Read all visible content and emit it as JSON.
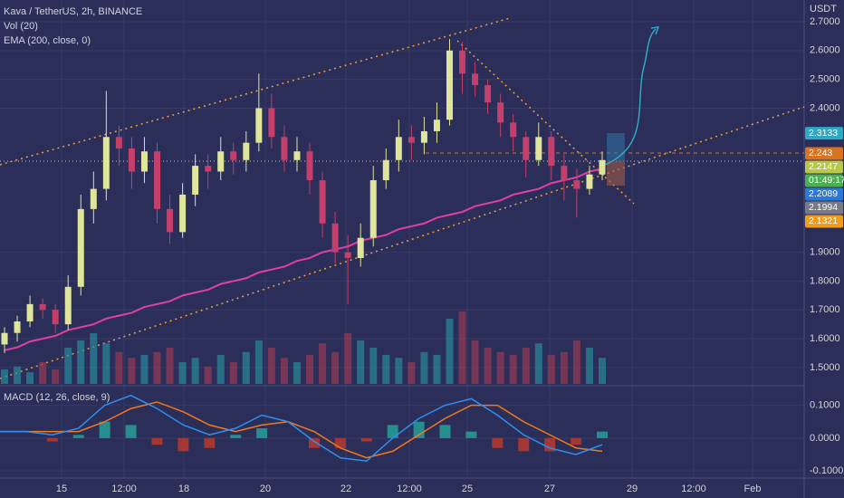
{
  "header": {
    "symbol": "Kava / TetherUS, 2h, BINANCE",
    "volume": "Vol (20)",
    "ema": "EMA (200, close, 0)"
  },
  "price": {
    "currency": "USDT",
    "ylim": [
      1.44,
      2.7754
    ],
    "yticks": [
      {
        "value": 2.7,
        "label": "2.7000"
      },
      {
        "value": 2.6,
        "label": "2.6000"
      },
      {
        "value": 2.5,
        "label": "2.5000"
      },
      {
        "value": 2.4,
        "label": "2.4000"
      },
      {
        "value": 1.9,
        "label": "1.9000"
      },
      {
        "value": 1.8,
        "label": "1.8000"
      },
      {
        "value": 1.7,
        "label": "1.7000"
      },
      {
        "value": 1.6,
        "label": "1.6000"
      },
      {
        "value": 1.5,
        "label": "1.5000"
      }
    ],
    "up_color": "#dfe59a",
    "down_color": "#c43f6c",
    "candles": [
      [
        1.58,
        1.64,
        1.55,
        1.62
      ],
      [
        1.62,
        1.68,
        1.59,
        1.66
      ],
      [
        1.66,
        1.75,
        1.64,
        1.72
      ],
      [
        1.72,
        1.74,
        1.67,
        1.7
      ],
      [
        1.7,
        1.72,
        1.62,
        1.65
      ],
      [
        1.65,
        1.82,
        1.63,
        1.78
      ],
      [
        1.78,
        2.1,
        1.75,
        2.05
      ],
      [
        2.05,
        2.18,
        2.0,
        2.12
      ],
      [
        2.12,
        2.46,
        2.08,
        2.3
      ],
      [
        2.3,
        2.34,
        2.2,
        2.26
      ],
      [
        2.26,
        2.3,
        2.12,
        2.18
      ],
      [
        2.18,
        2.3,
        2.14,
        2.25
      ],
      [
        2.25,
        2.28,
        2.0,
        2.05
      ],
      [
        2.05,
        2.1,
        1.93,
        1.97
      ],
      [
        1.97,
        2.14,
        1.95,
        2.1
      ],
      [
        2.1,
        2.24,
        2.06,
        2.2
      ],
      [
        2.2,
        2.24,
        2.12,
        2.18
      ],
      [
        2.18,
        2.3,
        2.15,
        2.25
      ],
      [
        2.25,
        2.28,
        2.17,
        2.22
      ],
      [
        2.22,
        2.32,
        2.18,
        2.28
      ],
      [
        2.28,
        2.52,
        2.25,
        2.4
      ],
      [
        2.4,
        2.45,
        2.26,
        2.3
      ],
      [
        2.3,
        2.34,
        2.18,
        2.22
      ],
      [
        2.22,
        2.3,
        2.18,
        2.25
      ],
      [
        2.25,
        2.28,
        2.1,
        2.15
      ],
      [
        2.15,
        2.18,
        1.95,
        2.0
      ],
      [
        2.0,
        2.04,
        1.86,
        1.9
      ],
      [
        1.9,
        1.96,
        1.72,
        1.88
      ],
      [
        1.88,
        2.0,
        1.85,
        1.95
      ],
      [
        1.95,
        2.2,
        1.92,
        2.15
      ],
      [
        2.15,
        2.26,
        2.12,
        2.22
      ],
      [
        2.22,
        2.36,
        2.18,
        2.3
      ],
      [
        2.3,
        2.34,
        2.22,
        2.28
      ],
      [
        2.28,
        2.37,
        2.24,
        2.32
      ],
      [
        2.32,
        2.42,
        2.28,
        2.36
      ],
      [
        2.36,
        2.64,
        2.34,
        2.6
      ],
      [
        2.6,
        2.63,
        2.45,
        2.52
      ],
      [
        2.52,
        2.56,
        2.44,
        2.48
      ],
      [
        2.48,
        2.5,
        2.38,
        2.42
      ],
      [
        2.42,
        2.45,
        2.3,
        2.35
      ],
      [
        2.35,
        2.38,
        2.25,
        2.3
      ],
      [
        2.3,
        2.32,
        2.16,
        2.22
      ],
      [
        2.22,
        2.35,
        2.2,
        2.3
      ],
      [
        2.3,
        2.32,
        2.15,
        2.2
      ],
      [
        2.2,
        2.24,
        2.08,
        2.15
      ],
      [
        2.15,
        2.19,
        2.02,
        2.12
      ],
      [
        2.12,
        2.2,
        2.1,
        2.17
      ],
      [
        2.17,
        2.25,
        2.15,
        2.22
      ]
    ],
    "ema_color": "#e040a0",
    "ema": [
      1.56,
      1.57,
      1.59,
      1.6,
      1.61,
      1.63,
      1.64,
      1.65,
      1.67,
      1.68,
      1.69,
      1.71,
      1.72,
      1.73,
      1.75,
      1.76,
      1.77,
      1.79,
      1.8,
      1.81,
      1.83,
      1.84,
      1.85,
      1.87,
      1.88,
      1.9,
      1.91,
      1.92,
      1.94,
      1.95,
      1.96,
      1.98,
      1.99,
      2.0,
      2.02,
      2.03,
      2.04,
      2.06,
      2.07,
      2.08,
      2.1,
      2.11,
      2.12,
      2.14,
      2.15,
      2.16,
      2.18,
      2.19
    ],
    "volume": [
      10,
      12,
      8,
      15,
      10,
      25,
      30,
      35,
      28,
      22,
      18,
      20,
      22,
      25,
      15,
      18,
      12,
      20,
      15,
      22,
      30,
      25,
      18,
      15,
      20,
      28,
      22,
      35,
      30,
      25,
      20,
      18,
      15,
      22,
      20,
      45,
      50,
      30,
      25,
      22,
      20,
      25,
      28,
      20,
      22,
      30,
      25,
      18
    ],
    "badges": [
      {
        "value": 2.3133,
        "color": "#2fa8c4"
      },
      {
        "value": 2.243,
        "color": "#d9731f"
      },
      {
        "value": 2.2147,
        "color": "#b5c84a"
      },
      {
        "value": 2.2089,
        "color": "#2979d8"
      },
      {
        "value": 2.1994,
        "color": "#787b86"
      },
      {
        "value": 2.1321,
        "color": "#f29a1a"
      }
    ],
    "countdown": "01:49:17"
  },
  "macd": {
    "label": "MACD (12, 26, close, 9)",
    "ylim": [
      -0.1189,
      0.1568
    ],
    "yticks": [
      {
        "value": 0.1,
        "label": "0.1000"
      },
      {
        "value": 0,
        "label": "0.0000"
      },
      {
        "value": -0.1,
        "label": "-0.1000"
      }
    ],
    "macd_color": "#2e8ff0",
    "signal_color": "#f27a1a",
    "macd": [
      0.02,
      0.02,
      0.01,
      0.03,
      0.1,
      0.13,
      0.09,
      0.04,
      0.01,
      0.03,
      0.07,
      0.05,
      -0.01,
      -0.06,
      -0.07,
      0.0,
      0.06,
      0.1,
      0.12,
      0.07,
      0.01,
      -0.03,
      -0.05,
      -0.02
    ],
    "signal": [
      0.02,
      0.02,
      0.02,
      0.02,
      0.05,
      0.09,
      0.11,
      0.08,
      0.04,
      0.02,
      0.04,
      0.05,
      0.02,
      -0.03,
      -0.06,
      -0.04,
      0.01,
      0.06,
      0.1,
      0.1,
      0.05,
      0.01,
      -0.03,
      -0.04
    ],
    "histogram": [
      0,
      0,
      -0.01,
      0.01,
      0.05,
      0.04,
      -0.02,
      -0.04,
      -0.03,
      0.01,
      0.03,
      0,
      -0.03,
      -0.03,
      -0.01,
      0.04,
      0.05,
      0.04,
      0.02,
      -0.03,
      -0.04,
      -0.04,
      -0.02,
      0.02
    ]
  },
  "time_axis": [
    "15",
    "12:00",
    "18",
    "20",
    "22",
    "12:00",
    "25",
    "27",
    "29",
    "12:00",
    "Feb"
  ]
}
